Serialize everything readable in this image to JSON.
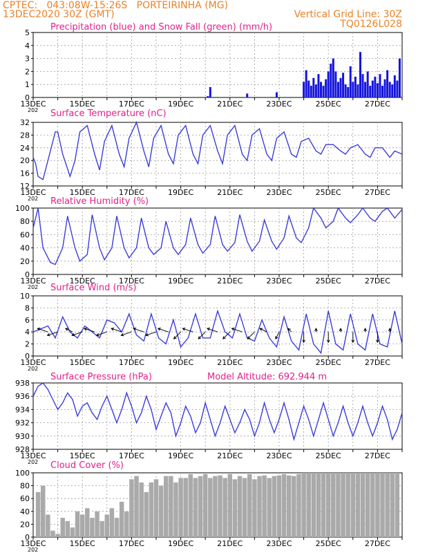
{
  "header": {
    "line1_left": "CPTEC:   043:08W-15:26S   PORTEIRINHA (MG)",
    "line2_left": "13DEC2020 30Z (GMT)",
    "line1_right": "Vertical Grid Line: 30Z",
    "line2_right": "TQ0126L028",
    "cut_label": "202"
  },
  "colors": {
    "header": "#e8822a",
    "title": "#e0208c",
    "line": "#3c3cdc",
    "precip": "#1414dc",
    "snow": "#10a010",
    "cloud": "#aaaaaa",
    "wind_arrow": "#000000"
  },
  "x_axis": {
    "start_day": 13,
    "end_day": 28,
    "tick_labels": [
      "13DEC",
      "15DEC",
      "17DEC",
      "19DEC",
      "21DEC",
      "23DEC",
      "25DEC",
      "27DEC"
    ],
    "vertical_grid_line": "30Z"
  },
  "chart_data": [
    {
      "type": "bar",
      "title": "Precipitation (blue) and Snow Fall (green) (mm/h)",
      "ylim": [
        0,
        5
      ],
      "yticks": [
        "0",
        "1",
        "2",
        "3",
        "4",
        "5"
      ],
      "series": [
        {
          "name": "Precipitation (blue)",
          "x": [
            20.1,
            20.2,
            21.7,
            22.9,
            24.0,
            24.1,
            24.2,
            24.3,
            24.4,
            24.5,
            24.6,
            24.7,
            24.8,
            24.9,
            25.0,
            25.1,
            25.2,
            25.3,
            25.4,
            25.5,
            25.6,
            25.7,
            25.8,
            25.9,
            26.0,
            26.1,
            26.2,
            26.3,
            26.4,
            26.5,
            26.6,
            26.7,
            26.8,
            26.9,
            27.0,
            27.1,
            27.2,
            27.3,
            27.4,
            27.5,
            27.6,
            27.7,
            27.8,
            27.9
          ],
          "values": [
            0.1,
            0.8,
            0.3,
            0.4,
            1.2,
            2.1,
            1.3,
            0.9,
            1.5,
            1.0,
            1.8,
            1.2,
            0.9,
            1.4,
            2.0,
            2.6,
            3.0,
            2.0,
            1.2,
            1.5,
            1.9,
            1.0,
            0.8,
            2.4,
            1.2,
            1.6,
            1.0,
            3.5,
            1.8,
            1.2,
            2.0,
            0.9,
            1.3,
            1.6,
            1.1,
            1.8,
            0.9,
            1.4,
            2.1,
            1.2,
            1.0,
            1.7,
            1.3,
            3.0
          ]
        },
        {
          "name": "Snow Fall (green)",
          "x": [
            19.8,
            20.5,
            21.4,
            22.1,
            23.0,
            23.5
          ],
          "values": [
            0.05,
            0.05,
            0.05,
            0.05,
            0.05,
            0.05
          ]
        }
      ]
    },
    {
      "type": "line",
      "title": "Surface Temperature (nC)",
      "ylim": [
        12,
        32
      ],
      "yticks": [
        "12",
        "16",
        "20",
        "24",
        "28",
        "32"
      ],
      "series": [
        {
          "name": "Surface Temperature",
          "x": [
            13.0,
            13.1,
            13.2,
            13.4,
            13.6,
            13.9,
            14.0,
            14.2,
            14.5,
            14.7,
            14.9,
            15.2,
            15.5,
            15.7,
            15.9,
            16.2,
            16.5,
            16.7,
            16.9,
            17.2,
            17.5,
            17.7,
            17.9,
            18.2,
            18.5,
            18.7,
            18.9,
            19.2,
            19.5,
            19.7,
            19.9,
            20.2,
            20.5,
            20.7,
            20.9,
            21.2,
            21.5,
            21.7,
            21.9,
            22.2,
            22.5,
            22.7,
            22.9,
            23.2,
            23.5,
            23.7,
            23.9,
            24.2,
            24.5,
            24.7,
            24.9,
            25.2,
            25.5,
            25.7,
            25.9,
            26.2,
            26.5,
            26.7,
            26.9,
            27.2,
            27.5,
            27.7,
            28.0
          ],
          "values": [
            21,
            19,
            15,
            14,
            20,
            29,
            29,
            22,
            15,
            20,
            29,
            31,
            22,
            17,
            26,
            31,
            22,
            18,
            27,
            32,
            23,
            18,
            27,
            31,
            22,
            19,
            28,
            31,
            22,
            19,
            28,
            31,
            23,
            19,
            28,
            31,
            22,
            20,
            28,
            30,
            22,
            20,
            27,
            29,
            22,
            21,
            26,
            27,
            23,
            22,
            25,
            25,
            23,
            22,
            24,
            25,
            22,
            21,
            24,
            24,
            21,
            23,
            22
          ]
        }
      ]
    },
    {
      "type": "line",
      "title": "Relative Humidity (%)",
      "ylim": [
        0,
        100
      ],
      "yticks": [
        "0",
        "20",
        "40",
        "60",
        "80",
        "100"
      ],
      "series": [
        {
          "name": "Relative Humidity",
          "x": [
            13.0,
            13.2,
            13.4,
            13.7,
            13.9,
            14.2,
            14.4,
            14.7,
            14.9,
            15.2,
            15.4,
            15.7,
            15.9,
            16.2,
            16.4,
            16.7,
            16.9,
            17.2,
            17.4,
            17.7,
            17.9,
            18.2,
            18.4,
            18.7,
            18.9,
            19.2,
            19.4,
            19.7,
            19.9,
            20.2,
            20.4,
            20.7,
            20.9,
            21.2,
            21.4,
            21.7,
            21.9,
            22.2,
            22.4,
            22.7,
            22.9,
            23.2,
            23.4,
            23.7,
            23.9,
            24.2,
            24.4,
            24.7,
            24.9,
            25.2,
            25.4,
            25.7,
            25.9,
            26.2,
            26.4,
            26.7,
            26.9,
            27.2,
            27.4,
            27.7,
            28.0
          ],
          "values": [
            70,
            100,
            40,
            18,
            15,
            40,
            88,
            40,
            20,
            30,
            90,
            40,
            22,
            40,
            88,
            40,
            25,
            40,
            85,
            40,
            30,
            40,
            80,
            40,
            30,
            45,
            85,
            45,
            32,
            45,
            88,
            45,
            35,
            48,
            90,
            50,
            35,
            50,
            82,
            50,
            38,
            55,
            88,
            55,
            48,
            70,
            100,
            85,
            70,
            80,
            100,
            85,
            78,
            90,
            100,
            85,
            80,
            95,
            100,
            85,
            98
          ]
        }
      ]
    },
    {
      "type": "line",
      "title": "Surface Wind (m/s)",
      "ylim": [
        0,
        10
      ],
      "yticks": [
        "0",
        "2",
        "4",
        "6",
        "8",
        "10"
      ],
      "series": [
        {
          "name": "Surface Wind",
          "x": [
            13.0,
            13.3,
            13.6,
            13.9,
            14.2,
            14.5,
            14.8,
            15.1,
            15.4,
            15.7,
            16.0,
            16.3,
            16.6,
            16.9,
            17.2,
            17.5,
            17.8,
            18.1,
            18.4,
            18.7,
            19.0,
            19.3,
            19.6,
            19.9,
            20.2,
            20.5,
            20.8,
            21.1,
            21.4,
            21.7,
            22.0,
            22.3,
            22.6,
            22.9,
            23.2,
            23.5,
            23.8,
            24.1,
            24.4,
            24.7,
            25.0,
            25.3,
            25.6,
            25.9,
            26.2,
            26.5,
            26.8,
            27.1,
            27.4,
            27.7,
            28.0
          ],
          "values": [
            4,
            4.5,
            5,
            3,
            6.5,
            4,
            3,
            5,
            4,
            3,
            6,
            5.5,
            4,
            7,
            3.5,
            2.5,
            7,
            3,
            2,
            6,
            1.5,
            3,
            7,
            3,
            3,
            7.5,
            4,
            3,
            7,
            3,
            2.5,
            6,
            3,
            1.5,
            6.5,
            2.5,
            1,
            7,
            2,
            0.5,
            7.5,
            2,
            1,
            7,
            2,
            1,
            7,
            2,
            1.5,
            7.5,
            2
          ]
        }
      ]
    },
    {
      "type": "line",
      "title": "Surface Pressure (hPa)",
      "subtitle": "Model Altitude: 692.944 m",
      "ylim": [
        928,
        938
      ],
      "yticks": [
        "928",
        "930",
        "932",
        "934",
        "936",
        "938"
      ],
      "series": [
        {
          "name": "Surface Pressure",
          "x": [
            13.0,
            13.2,
            13.4,
            13.6,
            13.8,
            14.0,
            14.2,
            14.4,
            14.6,
            14.8,
            15.0,
            15.2,
            15.4,
            15.6,
            15.8,
            16.0,
            16.2,
            16.4,
            16.6,
            16.8,
            17.0,
            17.2,
            17.4,
            17.6,
            17.8,
            18.0,
            18.2,
            18.4,
            18.6,
            18.8,
            19.0,
            19.2,
            19.4,
            19.6,
            19.8,
            20.0,
            20.2,
            20.4,
            20.6,
            20.8,
            21.0,
            21.2,
            21.4,
            21.6,
            21.8,
            22.0,
            22.2,
            22.4,
            22.6,
            22.8,
            23.0,
            23.2,
            23.4,
            23.6,
            23.8,
            24.0,
            24.2,
            24.4,
            24.6,
            24.8,
            25.0,
            25.2,
            25.4,
            25.6,
            25.8,
            26.0,
            26.2,
            26.4,
            26.6,
            26.8,
            27.0,
            27.2,
            27.4,
            27.6,
            27.8,
            28.0
          ],
          "values": [
            936,
            937.5,
            938,
            937,
            935.5,
            934,
            935,
            936.5,
            935.5,
            933,
            934.5,
            935,
            933.5,
            932.5,
            934.5,
            936,
            934,
            932,
            934,
            936.5,
            934.5,
            932,
            933.5,
            936,
            934,
            931,
            933,
            935,
            933.5,
            930,
            932,
            934.5,
            933,
            930.5,
            932,
            935,
            932.5,
            930,
            932,
            934.5,
            932.5,
            930.5,
            932,
            934,
            932.5,
            930,
            932,
            935,
            932.5,
            930.5,
            932.5,
            935,
            932.5,
            929.5,
            932,
            934.5,
            932.5,
            930,
            932.5,
            935,
            932.5,
            930,
            932,
            934.5,
            932,
            930,
            932,
            934.5,
            932,
            930,
            932,
            934.5,
            932.5,
            929.5,
            931,
            933.5
          ]
        }
      ]
    },
    {
      "type": "bar",
      "title": "Cloud Cover (%)",
      "ylim": [
        0,
        100
      ],
      "yticks": [
        "0",
        "20",
        "40",
        "60",
        "80",
        "100"
      ],
      "series": [
        {
          "name": "Cloud Cover",
          "x": [
            13.2,
            13.4,
            13.6,
            13.8,
            14.0,
            14.2,
            14.4,
            14.6,
            14.8,
            15.0,
            15.2,
            15.4,
            15.6,
            15.8,
            16.0,
            16.2,
            16.4,
            16.6,
            16.8,
            17.0,
            17.2,
            17.4,
            17.6,
            17.8,
            18.0,
            18.2,
            18.4,
            18.6,
            18.8,
            19.0,
            19.2,
            19.4,
            19.6,
            19.8,
            20.0,
            20.2,
            20.4,
            20.6,
            20.8,
            21.0,
            21.2,
            21.4,
            21.6,
            21.8,
            22.0,
            22.2,
            22.4,
            22.6,
            22.8,
            23.0,
            23.2,
            23.4,
            23.6,
            23.8,
            24.0,
            24.2,
            24.4,
            24.6,
            24.8,
            25.0,
            25.2,
            25.4,
            25.6,
            25.8,
            26.0,
            26.2,
            26.4,
            26.6,
            26.8,
            27.0,
            27.2,
            27.4,
            27.6,
            27.8
          ],
          "values": [
            70,
            80,
            35,
            10,
            5,
            30,
            25,
            15,
            40,
            35,
            45,
            30,
            40,
            25,
            35,
            45,
            30,
            55,
            40,
            90,
            95,
            85,
            70,
            85,
            90,
            80,
            95,
            95,
            85,
            92,
            92,
            98,
            92,
            95,
            98,
            92,
            95,
            96,
            92,
            98,
            90,
            95,
            92,
            98,
            90,
            95,
            96,
            92,
            95,
            96,
            98,
            96,
            95,
            98,
            100,
            100,
            100,
            100,
            100,
            100,
            100,
            100,
            100,
            100,
            100,
            100,
            100,
            100,
            100,
            100,
            100,
            100,
            100,
            100
          ]
        }
      ]
    }
  ],
  "wind_arrows": {
    "x": [
      13.6,
      14.0,
      14.6,
      15.0,
      15.5,
      16.0,
      16.6,
      17.0,
      17.5,
      18.0,
      18.5,
      19.0,
      19.5,
      20.0,
      20.5,
      21.0,
      21.5,
      22.0,
      22.5,
      23.0,
      23.5,
      24.0,
      24.5,
      25.0,
      25.5,
      26.0,
      26.5,
      27.0,
      27.5
    ],
    "u": [
      -3,
      -3,
      -2,
      -3,
      -3,
      -3,
      -3,
      -3,
      -3,
      -3,
      -3,
      -2,
      -3,
      -2,
      -3,
      -2,
      -3,
      -2,
      -2,
      -1,
      -1,
      0,
      0,
      0,
      0,
      0,
      0,
      0,
      0
    ],
    "v": [
      1,
      -1,
      1,
      -1,
      1,
      -1,
      1,
      -1,
      1,
      -1,
      1,
      -2,
      1,
      -2,
      1,
      -2,
      1,
      -2,
      1,
      -2,
      1,
      -3,
      1,
      -3,
      1,
      -3,
      1,
      -3,
      1
    ]
  }
}
